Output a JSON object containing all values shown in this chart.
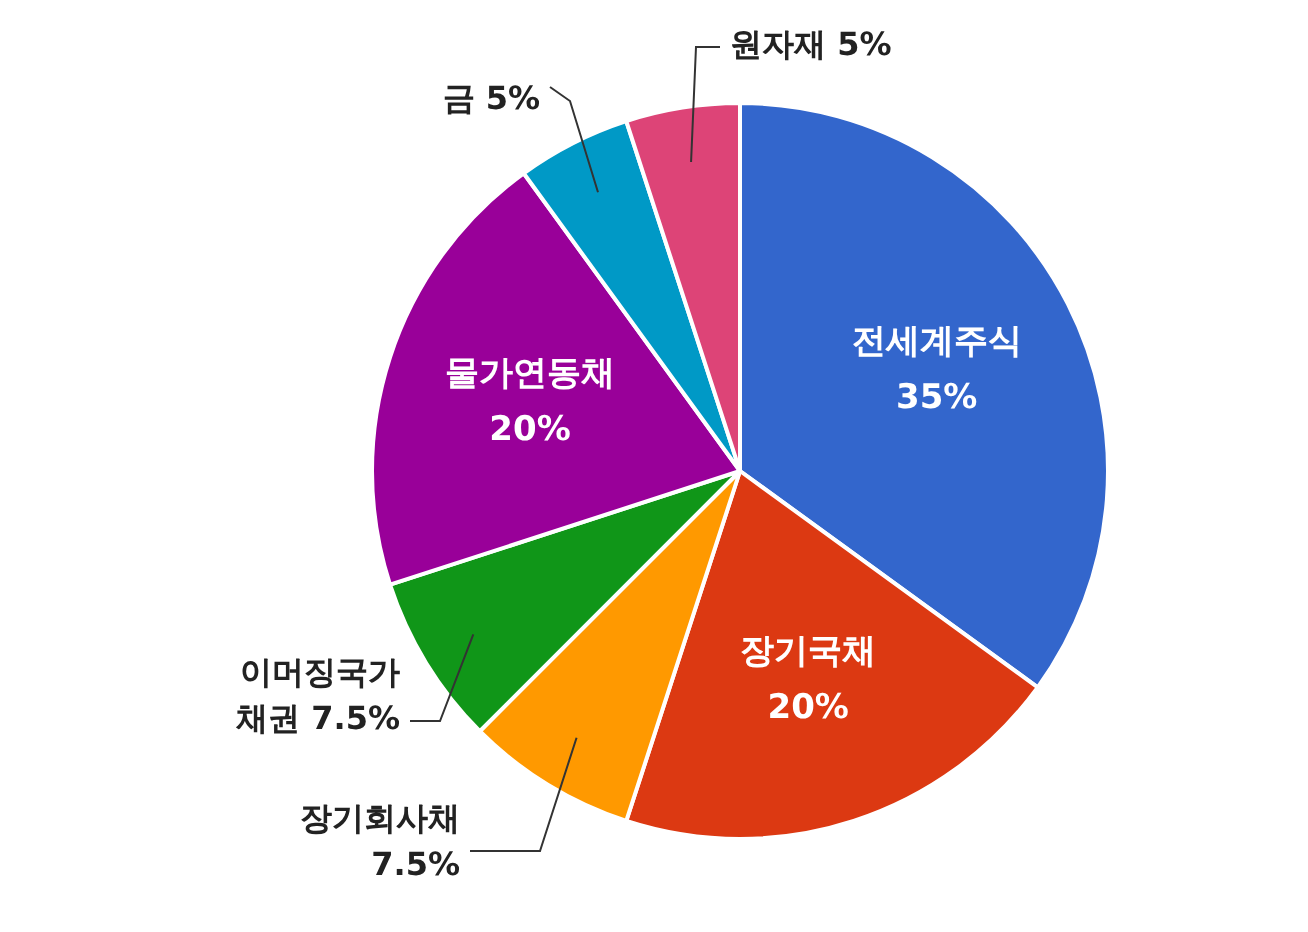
{
  "chart_data": {
    "type": "pie",
    "categories": [
      "전세계주식",
      "장기국채",
      "장기회사채",
      "이머징국가 채권",
      "물가연동채",
      "금",
      "원자재"
    ],
    "values": [
      35,
      20,
      7.5,
      7.5,
      20,
      5,
      5
    ],
    "value_labels": [
      "35%",
      "20%",
      "7.5%",
      "7.5%",
      "20%",
      "5%",
      "5%"
    ],
    "colors": [
      "#3366cc",
      "#dc3912",
      "#ff9900",
      "#109618",
      "#990099",
      "#0099c6",
      "#dd4477"
    ],
    "legend": false
  }
}
